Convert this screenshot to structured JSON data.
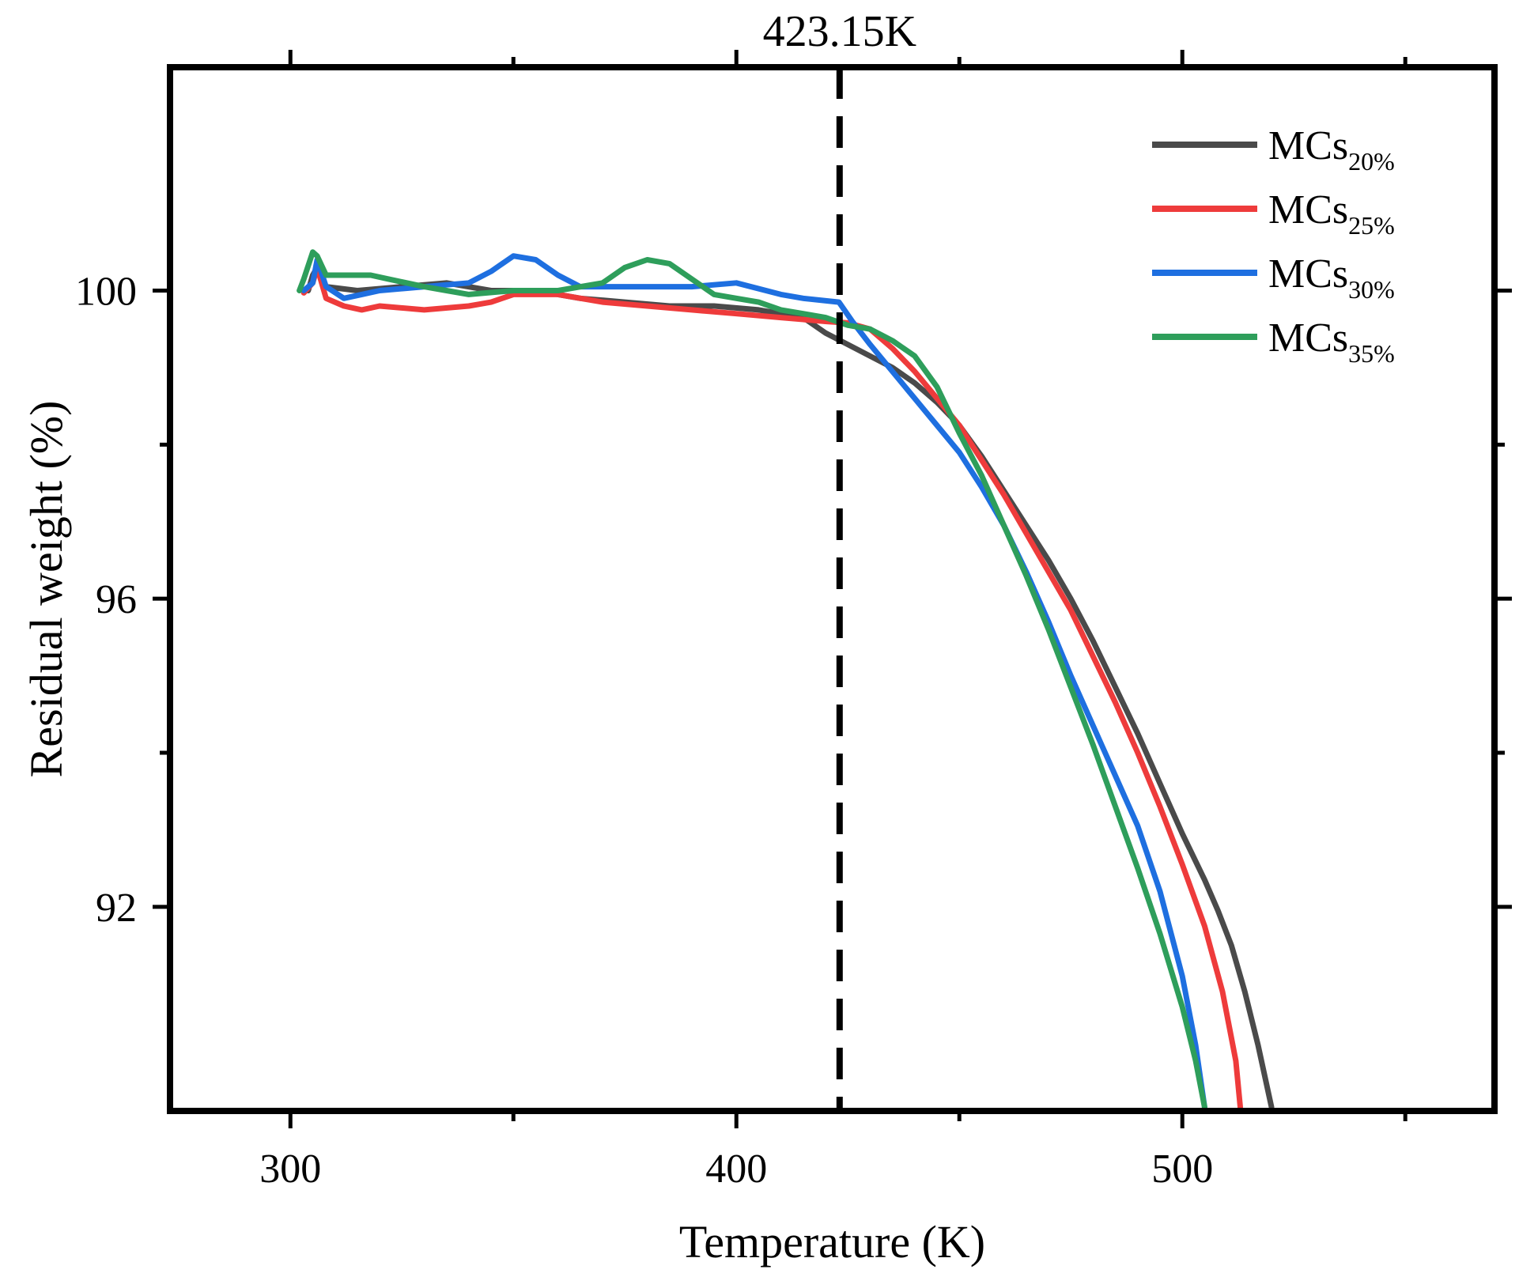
{
  "chart_data": {
    "type": "line",
    "title": "",
    "xlabel": "Temperature (K)",
    "ylabel": "Residual weight (%)",
    "xlim": [
      273,
      570
    ],
    "ylim": [
      89.35,
      102.9
    ],
    "x_ticks": [
      300,
      400,
      500
    ],
    "x_minor_ticks": [
      350,
      450,
      550
    ],
    "y_ticks": [
      92,
      96,
      100
    ],
    "y_minor_ticks": [
      94,
      98
    ],
    "grid": false,
    "legend_position": "top-right",
    "annotation": {
      "label": "423.15K",
      "x": 423.15,
      "style": "vertical dashed line"
    },
    "series": [
      {
        "name": "MCs",
        "subscript": "20%",
        "color": "#4a4a4a",
        "points": [
          [
            304,
            100.0
          ],
          [
            305,
            100.2
          ],
          [
            306,
            100.3
          ],
          [
            308,
            100.05
          ],
          [
            315,
            100.0
          ],
          [
            325,
            100.05
          ],
          [
            335,
            100.1
          ],
          [
            345,
            100.0
          ],
          [
            355,
            100.0
          ],
          [
            365,
            99.9
          ],
          [
            375,
            99.85
          ],
          [
            385,
            99.8
          ],
          [
            395,
            99.8
          ],
          [
            405,
            99.75
          ],
          [
            410,
            99.7
          ],
          [
            415,
            99.65
          ],
          [
            420,
            99.45
          ],
          [
            425,
            99.3
          ],
          [
            430,
            99.15
          ],
          [
            435,
            99.0
          ],
          [
            440,
            98.8
          ],
          [
            445,
            98.55
          ],
          [
            450,
            98.25
          ],
          [
            455,
            97.85
          ],
          [
            460,
            97.4
          ],
          [
            465,
            96.95
          ],
          [
            470,
            96.5
          ],
          [
            475,
            96.0
          ],
          [
            480,
            95.45
          ],
          [
            485,
            94.85
          ],
          [
            490,
            94.25
          ],
          [
            495,
            93.6
          ],
          [
            500,
            92.95
          ],
          [
            505,
            92.35
          ],
          [
            508,
            91.95
          ],
          [
            511,
            91.5
          ],
          [
            514,
            90.9
          ],
          [
            517,
            90.2
          ],
          [
            520,
            89.4
          ]
        ]
      },
      {
        "name": "MCs",
        "subscript": "25%",
        "color": "#ee3b3b",
        "points": [
          [
            303,
            99.97
          ],
          [
            305,
            100.1
          ],
          [
            306,
            100.3
          ],
          [
            308,
            99.9
          ],
          [
            312,
            99.8
          ],
          [
            316,
            99.75
          ],
          [
            320,
            99.8
          ],
          [
            330,
            99.75
          ],
          [
            340,
            99.8
          ],
          [
            345,
            99.85
          ],
          [
            350,
            99.95
          ],
          [
            360,
            99.95
          ],
          [
            370,
            99.85
          ],
          [
            380,
            99.8
          ],
          [
            390,
            99.75
          ],
          [
            400,
            99.7
          ],
          [
            410,
            99.65
          ],
          [
            420,
            99.6
          ],
          [
            425,
            99.58
          ],
          [
            430,
            99.5
          ],
          [
            435,
            99.25
          ],
          [
            440,
            98.95
          ],
          [
            445,
            98.6
          ],
          [
            450,
            98.25
          ],
          [
            455,
            97.8
          ],
          [
            460,
            97.35
          ],
          [
            465,
            96.85
          ],
          [
            470,
            96.35
          ],
          [
            475,
            95.85
          ],
          [
            480,
            95.25
          ],
          [
            485,
            94.65
          ],
          [
            490,
            94.0
          ],
          [
            495,
            93.3
          ],
          [
            500,
            92.55
          ],
          [
            505,
            91.75
          ],
          [
            509,
            90.9
          ],
          [
            512,
            90.0
          ],
          [
            513,
            89.4
          ]
        ]
      },
      {
        "name": "MCs",
        "subscript": "30%",
        "color": "#1e6fe0",
        "points": [
          [
            303,
            100.0
          ],
          [
            305,
            100.1
          ],
          [
            306,
            100.4
          ],
          [
            308,
            100.05
          ],
          [
            312,
            99.9
          ],
          [
            316,
            99.95
          ],
          [
            320,
            100.0
          ],
          [
            330,
            100.05
          ],
          [
            340,
            100.1
          ],
          [
            345,
            100.25
          ],
          [
            350,
            100.45
          ],
          [
            355,
            100.4
          ],
          [
            360,
            100.2
          ],
          [
            365,
            100.05
          ],
          [
            370,
            100.05
          ],
          [
            380,
            100.05
          ],
          [
            390,
            100.05
          ],
          [
            400,
            100.1
          ],
          [
            410,
            99.95
          ],
          [
            415,
            99.9
          ],
          [
            423,
            99.85
          ],
          [
            426,
            99.6
          ],
          [
            430,
            99.3
          ],
          [
            435,
            98.95
          ],
          [
            440,
            98.6
          ],
          [
            445,
            98.25
          ],
          [
            450,
            97.9
          ],
          [
            455,
            97.45
          ],
          [
            460,
            96.95
          ],
          [
            465,
            96.35
          ],
          [
            470,
            95.7
          ],
          [
            475,
            95.0
          ],
          [
            480,
            94.35
          ],
          [
            485,
            93.7
          ],
          [
            490,
            93.05
          ],
          [
            495,
            92.2
          ],
          [
            500,
            91.1
          ],
          [
            503,
            90.2
          ],
          [
            505,
            89.4
          ]
        ]
      },
      {
        "name": "MCs",
        "subscript": "35%",
        "color": "#2e9e5b",
        "points": [
          [
            302,
            100.0
          ],
          [
            303,
            100.15
          ],
          [
            305,
            100.5
          ],
          [
            306,
            100.45
          ],
          [
            308,
            100.2
          ],
          [
            312,
            100.2
          ],
          [
            318,
            100.2
          ],
          [
            322,
            100.15
          ],
          [
            330,
            100.05
          ],
          [
            335,
            100.0
          ],
          [
            340,
            99.95
          ],
          [
            350,
            100.0
          ],
          [
            360,
            100.0
          ],
          [
            370,
            100.1
          ],
          [
            375,
            100.3
          ],
          [
            380,
            100.4
          ],
          [
            385,
            100.35
          ],
          [
            390,
            100.15
          ],
          [
            395,
            99.95
          ],
          [
            400,
            99.9
          ],
          [
            405,
            99.85
          ],
          [
            410,
            99.75
          ],
          [
            415,
            99.7
          ],
          [
            420,
            99.65
          ],
          [
            425,
            99.55
          ],
          [
            430,
            99.5
          ],
          [
            435,
            99.35
          ],
          [
            440,
            99.15
          ],
          [
            445,
            98.75
          ],
          [
            450,
            98.15
          ],
          [
            455,
            97.6
          ],
          [
            460,
            96.95
          ],
          [
            465,
            96.3
          ],
          [
            470,
            95.6
          ],
          [
            475,
            94.85
          ],
          [
            480,
            94.1
          ],
          [
            485,
            93.3
          ],
          [
            490,
            92.5
          ],
          [
            495,
            91.65
          ],
          [
            500,
            90.7
          ],
          [
            503,
            90.0
          ],
          [
            505,
            89.4
          ]
        ]
      }
    ]
  }
}
